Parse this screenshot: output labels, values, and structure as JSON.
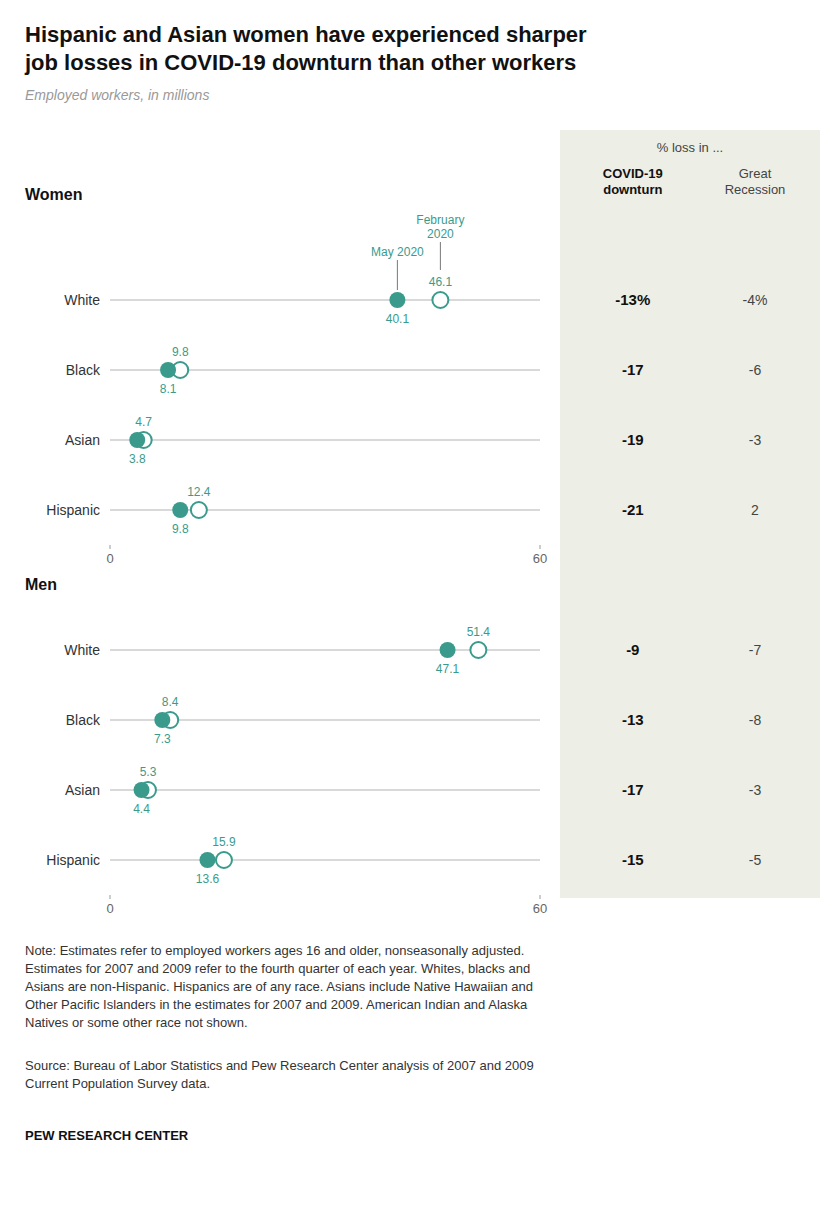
{
  "title": "Hispanic and Asian women have experienced sharper\njob losses in COVID-19 downturn than other workers",
  "subtitle": "Employed workers, in millions",
  "table_title": "% loss in ...",
  "table_columns": [
    "COVID-19\ndownturn",
    "Great\nRecession"
  ],
  "note": "Note: Estimates refer to employed workers ages 16 and older, nonseasonally adjusted.\nEstimates for 2007 and 2009 refer to the fourth quarter of each year. Whites, blacks and\nAsians are non-Hispanic. Hispanics are of any race. Asians include Native Hawaiian and\nOther Pacific Islanders in the estimates for 2007 and 2009. American Indian and Alaska\nNatives or some other race not shown.",
  "source": "Source: Bureau of Labor Statistics and Pew Research Center analysis of 2007 and 2009\nCurrent Population Survey data.",
  "credit": "PEW RESEARCH CENTER",
  "chart_data": [
    {
      "type": "dot",
      "title": "Women",
      "categories": [
        "White",
        "Black",
        "Asian",
        "Hispanic"
      ],
      "series": [
        {
          "name": "May 2020",
          "color": "#3a9b8c",
          "marker": "circle",
          "values": [
            40.1,
            8.1,
            3.8,
            9.8
          ]
        },
        {
          "name": "February\n2020",
          "color": "#3a9b8c",
          "marker": "circle-open",
          "values": [
            46.1,
            9.8,
            4.7,
            12.4
          ]
        }
      ],
      "xlim": [
        0,
        60
      ],
      "xticks": [
        0,
        60
      ],
      "data_labels": true,
      "grid": false,
      "table": [
        {
          "values": [
            -13,
            -17,
            -19,
            -21
          ],
          "value_labels": [
            "-13%",
            "-17",
            "-19",
            "-21"
          ]
        },
        {
          "values": [
            -4,
            -6,
            -3,
            2
          ],
          "value_labels": [
            "-4%",
            "-6",
            "-3",
            "2"
          ]
        }
      ]
    },
    {
      "type": "dot",
      "title": "Men",
      "categories": [
        "White",
        "Black",
        "Asian",
        "Hispanic"
      ],
      "series": [
        {
          "color": "#3a9b8c",
          "marker": "circle",
          "values": [
            47.1,
            7.3,
            4.4,
            13.6
          ]
        },
        {
          "color": "#3a9b8c",
          "marker": "circle-open",
          "values": [
            51.4,
            8.4,
            5.3,
            15.9
          ]
        }
      ],
      "xlim": [
        0,
        60
      ],
      "xticks": [
        0,
        60
      ],
      "data_labels": true,
      "grid": false,
      "table": [
        {
          "values": [
            -9,
            -13,
            -17,
            -15
          ],
          "value_labels": [
            "-9",
            "-13",
            "-17",
            "-15"
          ]
        },
        {
          "values": [
            -7,
            -8,
            -3,
            -5
          ],
          "value_labels": [
            "-7",
            "-8",
            "-3",
            "-5"
          ]
        }
      ]
    }
  ]
}
